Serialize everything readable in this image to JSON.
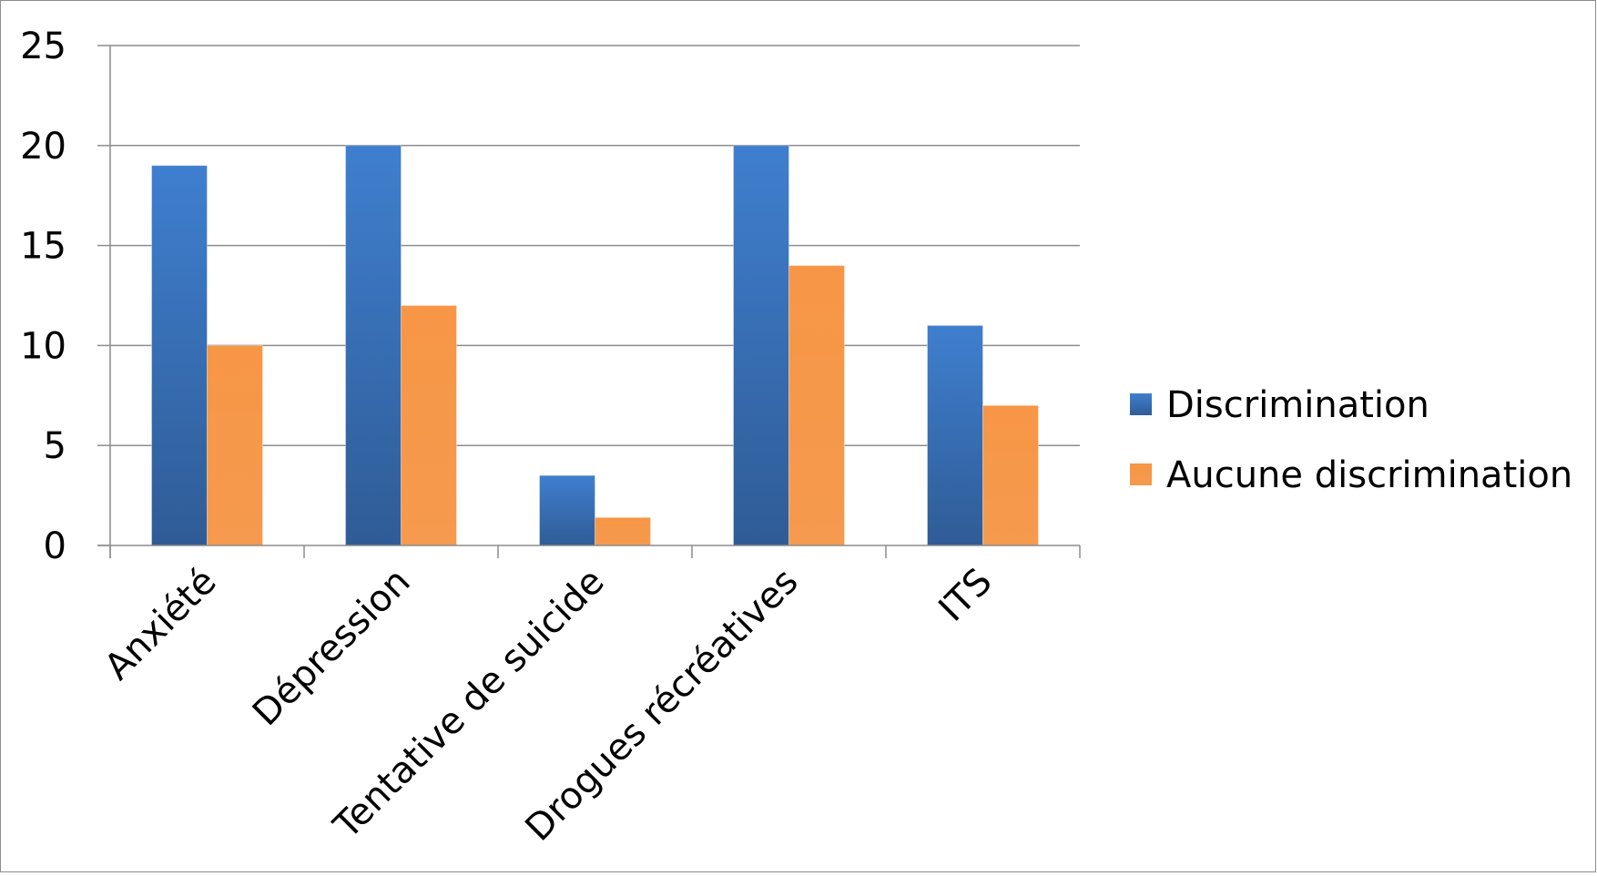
{
  "chart_data": {
    "type": "bar",
    "categories": [
      "Anxiété",
      "Dépression",
      "Tentative de suicide",
      "Drogues récréatives",
      "ITS"
    ],
    "series": [
      {
        "name": "Discrimination",
        "values": [
          19,
          20,
          3.5,
          20,
          11
        ],
        "color": "#3d7cc9"
      },
      {
        "name": "Aucune discrimination",
        "values": [
          10,
          12,
          1.4,
          14,
          7
        ],
        "color": "#f79646"
      }
    ],
    "y_ticks": [
      "0",
      "5",
      "10",
      "15",
      "20",
      "25"
    ],
    "ylim": [
      0,
      25
    ],
    "grid": true,
    "legend_position": "right"
  }
}
